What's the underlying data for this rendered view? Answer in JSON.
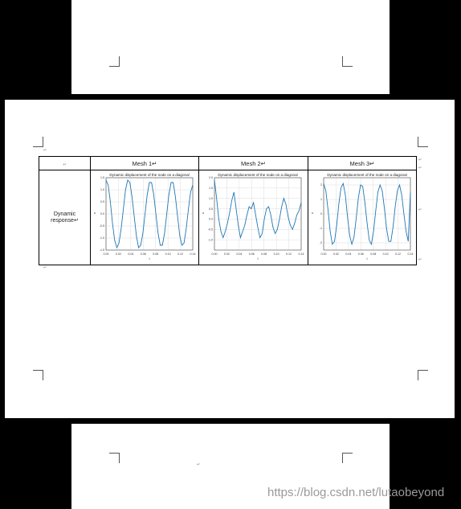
{
  "table": {
    "header": [
      "↵",
      "Mesh 1↵",
      "Mesh 2↵",
      "Mesh 3↵"
    ],
    "row_label": "Dynamic response↵",
    "para_marks": [
      "↵",
      "↵",
      "↵",
      "↵",
      "↵",
      "↵"
    ]
  },
  "bottom_page": {
    "para_mark": "↵"
  },
  "watermark": "https://blog.csdn.net/lutaobeyond",
  "colors": {
    "line": "#1f77b4",
    "grid": "#dddddd",
    "background": "#000000"
  },
  "chart_data": [
    {
      "type": "line",
      "title": "Dynamic displacement of the node on a diagonal",
      "xlabel": "t",
      "ylabel": "u",
      "xlim": [
        0,
        0.14
      ],
      "ylim": [
        -1.5,
        1.5
      ],
      "xticks": [
        "0.00",
        "0.02",
        "0.04",
        "0.06",
        "0.08",
        "0.10",
        "0.12",
        "0.14"
      ],
      "yticks": [
        "-1.5",
        "-1.0",
        "-0.5",
        "0.0",
        "0.5",
        "1.0",
        "1.5"
      ],
      "x_value_ticks": [
        0,
        0.02,
        0.04,
        0.06,
        0.08,
        0.1,
        0.12,
        0.14
      ],
      "y_value_ticks": [
        -1.5,
        -1.0,
        -0.5,
        0.0,
        0.5,
        1.0,
        1.5
      ],
      "series": [
        {
          "x": [
            0,
            0.0035,
            0.007,
            0.0105,
            0.014,
            0.0175,
            0.021,
            0.0245,
            0.028,
            0.0315,
            0.035,
            0.0385,
            0.042,
            0.0455,
            0.049,
            0.0525,
            0.056,
            0.0595,
            0.063,
            0.0665,
            0.07,
            0.0735,
            0.077,
            0.0805,
            0.084,
            0.0875,
            0.091,
            0.0945,
            0.098,
            0.1015,
            0.105,
            0.1085,
            0.112,
            0.1155,
            0.119,
            0.1225,
            0.126,
            0.1295,
            0.133,
            0.1365,
            0.14
          ],
          "y": [
            1.4,
            1.2,
            0.5,
            -0.4,
            -1.1,
            -1.4,
            -1.2,
            -0.6,
            0.2,
            1.0,
            1.4,
            1.3,
            0.7,
            -0.1,
            -0.9,
            -1.4,
            -1.3,
            -0.8,
            0.0,
            0.8,
            1.3,
            1.3,
            0.8,
            0.0,
            -0.8,
            -1.3,
            -1.3,
            -0.8,
            0.0,
            0.8,
            1.3,
            1.3,
            0.7,
            -0.1,
            -0.9,
            -1.3,
            -1.2,
            -0.6,
            0.2,
            0.9,
            1.2
          ]
        }
      ]
    },
    {
      "type": "line",
      "title": "Dynamic displacement of the node on a diagonal",
      "xlabel": "t",
      "ylabel": "u",
      "xlim": [
        0,
        0.14
      ],
      "ylim": [
        -1.5,
        2.0
      ],
      "xticks": [
        "0.00",
        "0.02",
        "0.04",
        "0.06",
        "0.08",
        "0.10",
        "0.12",
        "0.14"
      ],
      "yticks": [
        "-1.0",
        "-0.5",
        "0.0",
        "0.5",
        "1.0",
        "1.5",
        "2.0"
      ],
      "x_value_ticks": [
        0,
        0.02,
        0.04,
        0.06,
        0.08,
        0.1,
        0.12,
        0.14
      ],
      "y_value_ticks": [
        -1.0,
        -0.5,
        0.0,
        0.5,
        1.0,
        1.5,
        2.0
      ],
      "series": [
        {
          "x": [
            0,
            0.0035,
            0.007,
            0.0105,
            0.014,
            0.0175,
            0.021,
            0.0245,
            0.028,
            0.0315,
            0.035,
            0.0385,
            0.042,
            0.0455,
            0.049,
            0.0525,
            0.056,
            0.0595,
            0.063,
            0.0665,
            0.07,
            0.0735,
            0.077,
            0.0805,
            0.084,
            0.0875,
            0.091,
            0.0945,
            0.098,
            0.1015,
            0.105,
            0.1085,
            0.112,
            0.1155,
            0.119,
            0.1225,
            0.126,
            0.1295,
            0.133,
            0.1365,
            0.14
          ],
          "y": [
            1.9,
            1.0,
            0.0,
            -0.6,
            -0.9,
            -0.6,
            -0.2,
            0.3,
            0.9,
            1.3,
            0.5,
            -0.3,
            -0.9,
            -0.6,
            -0.3,
            0.2,
            0.6,
            0.5,
            0.8,
            0.2,
            -0.4,
            -0.9,
            -0.7,
            0.0,
            0.5,
            0.6,
            0.2,
            -0.4,
            -0.7,
            -0.5,
            0.0,
            0.6,
            1.0,
            0.7,
            0.1,
            -0.3,
            -0.5,
            -0.2,
            0.2,
            0.4,
            0.8
          ]
        }
      ]
    },
    {
      "type": "line",
      "title": "Dynamic displacement of the node on a diagonal",
      "xlabel": "t",
      "ylabel": "u",
      "xlim": [
        0,
        0.14
      ],
      "ylim": [
        -2.5,
        2.5
      ],
      "xticks": [
        "0.00",
        "0.02",
        "0.04",
        "0.06",
        "0.08",
        "0.10",
        "0.12",
        "0.14"
      ],
      "yticks": [
        "-2",
        "-1",
        "0",
        "1",
        "2"
      ],
      "x_value_ticks": [
        0,
        0.02,
        0.04,
        0.06,
        0.08,
        0.1,
        0.12,
        0.14
      ],
      "y_value_ticks": [
        -2,
        -1,
        0,
        1,
        2
      ],
      "series": [
        {
          "x": [
            0,
            0.0035,
            0.007,
            0.0105,
            0.014,
            0.0175,
            0.021,
            0.0245,
            0.028,
            0.0315,
            0.035,
            0.0385,
            0.042,
            0.0455,
            0.049,
            0.0525,
            0.056,
            0.0595,
            0.063,
            0.0665,
            0.07,
            0.0735,
            0.077,
            0.0805,
            0.084,
            0.0875,
            0.091,
            0.0945,
            0.098,
            0.1015,
            0.105,
            0.1085,
            0.112,
            0.1155,
            0.119,
            0.1225,
            0.126,
            0.1295,
            0.133,
            0.1365,
            0.14
          ],
          "y": [
            2.1,
            1.6,
            0.3,
            -1.2,
            -2.1,
            -1.9,
            -0.8,
            0.7,
            1.8,
            2.1,
            1.3,
            -0.2,
            -1.5,
            -2.1,
            -1.6,
            -0.3,
            1.1,
            2.0,
            1.9,
            0.8,
            -0.6,
            -1.8,
            -2.1,
            -1.2,
            0.2,
            1.5,
            2.0,
            1.6,
            0.4,
            -1.0,
            -1.9,
            -1.9,
            -0.9,
            0.5,
            1.6,
            2.0,
            1.3,
            0.0,
            -1.2,
            -1.9,
            1.5
          ]
        }
      ]
    }
  ]
}
